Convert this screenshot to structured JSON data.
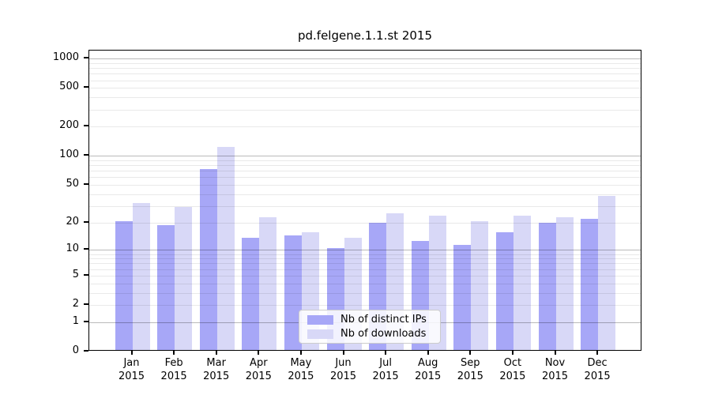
{
  "title": "pd.felgene.1.1.st 2015",
  "colors": {
    "ips_bar": "#a7a7f7",
    "downloads_bar": "#d8d8f7",
    "axis": "#000000",
    "grid_major": "#b9b9b9",
    "grid_minor": "#e8e8e8",
    "legend_border": "#cccccc"
  },
  "chart_data": {
    "type": "bar",
    "title": "pd.felgene.1.1.st 2015",
    "categories": [
      "Jan",
      "Feb",
      "Mar",
      "Apr",
      "May",
      "Jun",
      "Jul",
      "Aug",
      "Sep",
      "Oct",
      "Nov",
      "Dec"
    ],
    "year": "2015",
    "series": [
      {
        "name": "Nb of distinct IPs",
        "color": "#a7a7f7",
        "values": [
          20,
          18,
          70,
          13,
          14,
          10,
          19,
          12,
          11,
          15,
          19,
          21
        ]
      },
      {
        "name": "Nb of downloads",
        "color": "#d8d8f7",
        "values": [
          31,
          28,
          120,
          22,
          15,
          13,
          24,
          23,
          20,
          23,
          22,
          37
        ]
      }
    ],
    "xlabel": "",
    "ylabel": "",
    "yscale": "log1p",
    "yticks": [
      0,
      1,
      2,
      5,
      10,
      20,
      50,
      100,
      200,
      500,
      1000
    ],
    "ylim": [
      0,
      1000
    ],
    "grid": "horizontal, minor log gridlines at 2-9 per decade, major at 1/10/100/1000",
    "legend_position": "inside bottom-center"
  }
}
